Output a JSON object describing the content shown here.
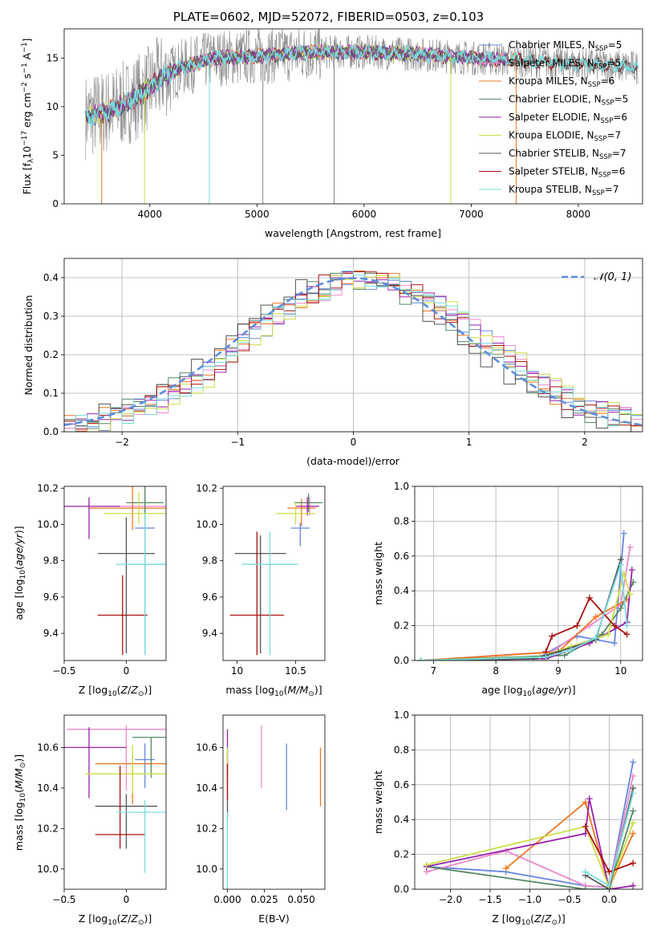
{
  "figure": {
    "title": "PLATE=0602, MJD=52072, FIBERID=0503, z=0.103"
  },
  "styles": {
    "series_colors": [
      "#6688dd",
      "#ee88cc",
      "#ee7722",
      "#558866",
      "#9922aa",
      "#ccdd44",
      "#555555",
      "#aa1111",
      "#77dddd"
    ],
    "grid_color": "#b0b0b0",
    "gaussian_color": "#5b8ee0"
  },
  "chart_data": [
    {
      "type": "line",
      "panel": "spectrum",
      "xlabel": "wavelength [Angstrom, rest frame]",
      "ylabel": "Flux [fλ10⁻¹⁷ erg cm⁻² s⁻¹ A⁻¹]",
      "xlim": [
        3200,
        8600
      ],
      "ylim": [
        0,
        18
      ],
      "xticks": [
        4000,
        5000,
        6000,
        7000,
        8000
      ],
      "yticks": [
        0,
        5,
        10,
        15
      ],
      "grid": false,
      "legend_position": "top-right",
      "series": [
        {
          "name": "Chabrier MILES, N_SSP=5",
          "label_html": "Chabrier MILES, N<tspan font-size='8' dy='2'>SSP</tspan><tspan dy='-2'>=5</tspan>"
        },
        {
          "name": "Salpeter MILES, N_SSP=5"
        },
        {
          "name": "Kroupa MILES, N_SSP=6"
        },
        {
          "name": "Chabrier ELODIE, N_SSP=5"
        },
        {
          "name": "Salpeter ELODIE, N_SSP=6"
        },
        {
          "name": "Kroupa ELODIE, N_SSP=7"
        },
        {
          "name": "Chabrier STELIB, N_SSP=7"
        },
        {
          "name": "Salpeter STELIB, N_SSP=6"
        },
        {
          "name": "Kroupa STELIB, N_SSP=7"
        }
      ],
      "legend_labels": [
        {
          "pre": "Chabrier MILES, N",
          "sub": "SSP",
          "post": "=5"
        },
        {
          "pre": "Salpeter MILES, N",
          "sub": "SSP",
          "post": "=5"
        },
        {
          "pre": "Kroupa MILES, N",
          "sub": "SSP",
          "post": "=6"
        },
        {
          "pre": "Chabrier ELODIE, N",
          "sub": "SSP",
          "post": "=5"
        },
        {
          "pre": "Salpeter ELODIE, N",
          "sub": "SSP",
          "post": "=6"
        },
        {
          "pre": "Kroupa ELODIE, N",
          "sub": "SSP",
          "post": "=7"
        },
        {
          "pre": "Chabrier STELIB, N",
          "sub": "SSP",
          "post": "=7"
        },
        {
          "pre": "Salpeter STELIB, N",
          "sub": "SSP",
          "post": "=6"
        },
        {
          "pre": "Kroupa STELIB, N",
          "sub": "SSP",
          "post": "=7"
        }
      ],
      "continuum": [
        [
          3400,
          9.0
        ],
        [
          3600,
          9.5
        ],
        [
          3800,
          10.5
        ],
        [
          3950,
          11.5
        ],
        [
          4100,
          13.0
        ],
        [
          4300,
          14.0
        ],
        [
          4600,
          15.0
        ],
        [
          5000,
          15.2
        ],
        [
          5500,
          15.6
        ],
        [
          6000,
          15.6
        ],
        [
          6500,
          15.4
        ],
        [
          7000,
          15.0
        ],
        [
          7400,
          14.8
        ],
        [
          7800,
          14.5
        ],
        [
          8300,
          14.2
        ],
        [
          8600,
          14.0
        ]
      ],
      "dips": [
        [
          3550,
          0
        ],
        [
          3950,
          0
        ],
        [
          4555,
          0
        ],
        [
          5055,
          0
        ],
        [
          5720,
          0
        ],
        [
          6810,
          0
        ],
        [
          7420,
          0
        ]
      ]
    },
    {
      "type": "bar",
      "panel": "residual-histogram",
      "xlabel": "(data-model)/error",
      "ylabel": "Normed distribution",
      "xlim": [
        -2.5,
        2.5
      ],
      "ylim": [
        0,
        0.45
      ],
      "xticks": [
        -2,
        -1,
        0,
        1,
        2
      ],
      "yticks": [
        0.0,
        0.1,
        0.2,
        0.3,
        0.4
      ],
      "grid": true,
      "legend_position": "top-right",
      "legend": "𝒩(0, 1)",
      "bin_width": 0.1
    },
    {
      "type": "scatter",
      "panel": "age-vs-Z",
      "xlabel": "Z [log10(Z/Z⊙)]",
      "ylabel": "age  [log10(age/yr)]",
      "xlim": [
        -0.5,
        0.32
      ],
      "ylim": [
        9.25,
        10.21
      ],
      "xticks": [
        -0.5,
        0.0
      ],
      "yticks": [
        9.4,
        9.6,
        9.8,
        10.0,
        10.2
      ],
      "points": [
        {
          "x": 0.15,
          "y": 9.98,
          "xerr": 0.08,
          "yerr": [
            0.7,
            0.05
          ]
        },
        {
          "x": 0.15,
          "y": 10.1,
          "xerr": 0.35,
          "yerr": [
            0.2,
            0.1
          ]
        },
        {
          "x": 0.05,
          "y": 10.09,
          "xerr": 0.35,
          "yerr": [
            0.12,
            0.12
          ]
        },
        {
          "x": 0.15,
          "y": 10.12,
          "xerr": 0.15,
          "yerr": [
            0.08,
            0.1
          ]
        },
        {
          "x": -0.3,
          "y": 10.1,
          "xerr": 0.25,
          "yerr": [
            0.18,
            0.05
          ]
        },
        {
          "x": 0.1,
          "y": 10.06,
          "xerr": 0.28,
          "yerr": [
            0.06,
            0.12
          ]
        },
        {
          "x": -0.0,
          "y": 9.84,
          "xerr": 0.23,
          "yerr": [
            0.55,
            0.2
          ]
        },
        {
          "x": -0.03,
          "y": 9.5,
          "xerr": 0.2,
          "yerr": [
            0.22,
            0.22
          ]
        },
        {
          "x": 0.15,
          "y": 9.78,
          "xerr": 0.23,
          "yerr": [
            0.5,
            0.28
          ]
        }
      ]
    },
    {
      "type": "scatter",
      "panel": "age-vs-mass",
      "xlabel": "mass [log10(M/M⊙)]",
      "ylabel": "",
      "xlim": [
        9.88,
        10.75
      ],
      "ylim": [
        9.25,
        10.21
      ],
      "xticks": [
        10.0,
        10.5
      ],
      "yticks": [
        9.4,
        9.6,
        9.8,
        10.0,
        10.2
      ],
      "points": [
        {
          "x": 10.54,
          "y": 9.98,
          "xerr": 0.08,
          "yerr": [
            0.1,
            0.03
          ]
        },
        {
          "x": 10.62,
          "y": 10.1,
          "xerr": 0.08,
          "yerr": [
            0.05,
            0.05
          ]
        },
        {
          "x": 10.55,
          "y": 10.09,
          "xerr": 0.12,
          "yerr": [
            0.1,
            0.05
          ]
        },
        {
          "x": 10.61,
          "y": 10.12,
          "xerr": 0.12,
          "yerr": [
            0.05,
            0.05
          ]
        },
        {
          "x": 10.6,
          "y": 10.1,
          "xerr": 0.1,
          "yerr": [
            0.05,
            0.05
          ]
        },
        {
          "x": 10.5,
          "y": 10.06,
          "xerr": 0.17,
          "yerr": [
            0.06,
            0.06
          ]
        },
        {
          "x": 10.2,
          "y": 9.84,
          "xerr": 0.22,
          "yerr": [
            0.55,
            0.1
          ]
        },
        {
          "x": 10.17,
          "y": 9.5,
          "xerr": 0.23,
          "yerr": [
            0.22,
            0.46
          ]
        },
        {
          "x": 10.28,
          "y": 9.78,
          "xerr": 0.24,
          "yerr": [
            0.5,
            0.18
          ]
        }
      ]
    },
    {
      "type": "line",
      "panel": "mass-weight-vs-age",
      "xlabel": "age  [log10(age/yr)]",
      "ylabel": "mass weight",
      "xlim": [
        6.7,
        10.35
      ],
      "ylim": [
        0,
        1.0
      ],
      "xticks": [
        7,
        8,
        9,
        10
      ],
      "yticks": [
        0.0,
        0.2,
        0.4,
        0.6,
        0.8,
        1.0
      ],
      "grid": true,
      "series": [
        {
          "x": [
            6.8,
            8.7,
            9.3,
            9.9,
            10.05
          ],
          "y": [
            0.0,
            0.02,
            0.14,
            0.1,
            0.73
          ]
        },
        {
          "x": [
            6.8,
            8.9,
            9.5,
            10.0,
            10.15
          ],
          "y": [
            0.0,
            0.05,
            0.2,
            0.32,
            0.65
          ]
        },
        {
          "x": [
            6.8,
            9.0,
            9.6,
            10.1
          ],
          "y": [
            0.0,
            0.05,
            0.25,
            0.35
          ]
        },
        {
          "x": [
            6.8,
            9.1,
            9.7,
            10.0,
            10.2
          ],
          "y": [
            0.0,
            0.03,
            0.15,
            0.3,
            0.45
          ]
        },
        {
          "x": [
            6.8,
            8.8,
            9.5,
            10.1,
            10.18
          ],
          "y": [
            0.0,
            0.01,
            0.1,
            0.22,
            0.52
          ]
        },
        {
          "x": [
            6.8,
            8.7,
            9.2,
            9.8,
            10.05,
            10.15
          ],
          "y": [
            0.0,
            0.02,
            0.08,
            0.15,
            0.5,
            0.38
          ]
        },
        {
          "x": [
            6.8,
            8.6,
            9.0,
            9.6,
            10.0
          ],
          "y": [
            0.0,
            0.01,
            0.05,
            0.12,
            0.58
          ]
        },
        {
          "x": [
            8.8,
            8.9,
            9.3,
            9.5,
            9.9,
            10.1
          ],
          "y": [
            0.05,
            0.14,
            0.2,
            0.36,
            0.2,
            0.15
          ]
        },
        {
          "x": [
            6.8,
            8.8,
            9.2,
            9.6,
            10.0,
            10.1
          ],
          "y": [
            0.0,
            0.02,
            0.06,
            0.13,
            0.55,
            0.2
          ]
        }
      ]
    },
    {
      "type": "scatter",
      "panel": "mass-vs-Z",
      "xlabel": "Z [log10(Z/Z⊙)]",
      "ylabel": "mass [log10(M/M⊙)]",
      "xlim": [
        -0.5,
        0.32
      ],
      "ylim": [
        9.9,
        10.76
      ],
      "xticks": [
        -0.5,
        0.0
      ],
      "yticks": [
        10.0,
        10.2,
        10.4,
        10.6
      ],
      "points": [
        {
          "x": 0.15,
          "y": 10.54,
          "xerr": 0.08,
          "yerr": [
            0.14,
            0.08
          ]
        },
        {
          "x": -0.0,
          "y": 10.69,
          "xerr": 0.48,
          "yerr": [
            0.3,
            0.02
          ]
        },
        {
          "x": 0.05,
          "y": 10.52,
          "xerr": 0.3,
          "yerr": [
            0.2,
            0.04
          ]
        },
        {
          "x": 0.2,
          "y": 10.65,
          "xerr": 0.15,
          "yerr": [
            0.2,
            0.0
          ]
        },
        {
          "x": -0.3,
          "y": 10.6,
          "xerr": 0.3,
          "yerr": [
            0.25,
            0.1
          ]
        },
        {
          "x": 0.05,
          "y": 10.47,
          "xerr": 0.38,
          "yerr": [
            0.1,
            0.14
          ]
        },
        {
          "x": 0.0,
          "y": 10.31,
          "xerr": 0.25,
          "yerr": [
            0.21,
            0.06
          ]
        },
        {
          "x": -0.05,
          "y": 10.17,
          "xerr": 0.2,
          "yerr": [
            0.07,
            0.34
          ]
        },
        {
          "x": 0.15,
          "y": 10.28,
          "xerr": 0.23,
          "yerr": [
            0.3,
            0.06
          ]
        }
      ]
    },
    {
      "type": "scatter",
      "panel": "mass-vs-EBV",
      "xlabel": "E(B-V)",
      "ylabel": "",
      "xlim": [
        -0.003,
        0.066
      ],
      "ylim": [
        9.9,
        10.76
      ],
      "xticks": [
        0.0,
        0.025,
        0.05
      ],
      "xtick_labels": [
        "0.000",
        "0.025",
        "0.050"
      ],
      "yticks": [
        10.0,
        10.2,
        10.4,
        10.6
      ],
      "points": [
        {
          "x": 0.04,
          "y": 10.45,
          "yerr": [
            0.16,
            0.17
          ]
        },
        {
          "x": 0.023,
          "y": 10.5,
          "yerr": [
            0.1,
            0.21
          ]
        },
        {
          "x": 0.063,
          "y": 10.45,
          "yerr": [
            0.14,
            0.15
          ]
        },
        {
          "x": 0.0,
          "y": 10.48,
          "yerr": [
            0.1,
            0.1
          ]
        },
        {
          "x": 0.0,
          "y": 10.55,
          "yerr": [
            0.1,
            0.14
          ]
        },
        {
          "x": 0.0,
          "y": 10.47,
          "yerr": [
            0.08,
            0.13
          ]
        },
        {
          "x": 0.0,
          "y": 10.3,
          "yerr": [
            0.06,
            0.08
          ]
        },
        {
          "x": 0.0,
          "y": 10.42,
          "yerr": [
            0.08,
            0.1
          ]
        },
        {
          "x": 0.0,
          "y": 10.1,
          "yerr": [
            0.2,
            0.18
          ]
        }
      ]
    },
    {
      "type": "line",
      "panel": "mass-weight-vs-Z",
      "xlabel": "Z [log10(Z/Z⊙)]",
      "ylabel": "mass weight",
      "xlim": [
        -2.45,
        0.42
      ],
      "ylim": [
        0,
        1.0
      ],
      "xticks": [
        -2.0,
        -1.5,
        -1.0,
        -0.5,
        0.0
      ],
      "xtick_labels": [
        "−2.0",
        "−1.5",
        "−1.0",
        "−0.5",
        "0.0"
      ],
      "yticks": [
        0.0,
        0.2,
        0.4,
        0.6,
        0.8,
        1.0
      ],
      "grid": true,
      "series": [
        {
          "x": [
            -2.3,
            -1.3,
            -0.3,
            0.0,
            0.3
          ],
          "y": [
            0.13,
            0.1,
            0.02,
            0.01,
            0.73
          ]
        },
        {
          "x": [
            -2.3,
            -1.3,
            -0.3,
            0.0,
            0.3
          ],
          "y": [
            0.1,
            0.22,
            0.02,
            0.01,
            0.65
          ]
        },
        {
          "x": [
            -1.3,
            -0.3,
            0.0,
            0.3
          ],
          "y": [
            0.12,
            0.5,
            0.01,
            0.32
          ]
        },
        {
          "x": [
            -2.3,
            -0.3,
            0.0,
            0.3
          ],
          "y": [
            0.13,
            0.0,
            0.0,
            0.45
          ]
        },
        {
          "x": [
            -2.3,
            -0.3,
            -0.25,
            0.0,
            0.3
          ],
          "y": [
            0.13,
            0.32,
            0.52,
            0.0,
            0.02
          ]
        },
        {
          "x": [
            -2.3,
            -0.3,
            0.0,
            0.3
          ],
          "y": [
            0.14,
            0.36,
            0.01,
            0.38
          ]
        },
        {
          "x": [
            -0.3,
            0.0,
            0.3
          ],
          "y": [
            0.08,
            0.0,
            0.58
          ]
        },
        {
          "x": [
            -0.3,
            0.0,
            0.3
          ],
          "y": [
            0.36,
            0.1,
            0.15
          ]
        },
        {
          "x": [
            -0.3,
            0.0,
            0.3
          ],
          "y": [
            0.1,
            0.02,
            0.55
          ]
        }
      ]
    }
  ]
}
